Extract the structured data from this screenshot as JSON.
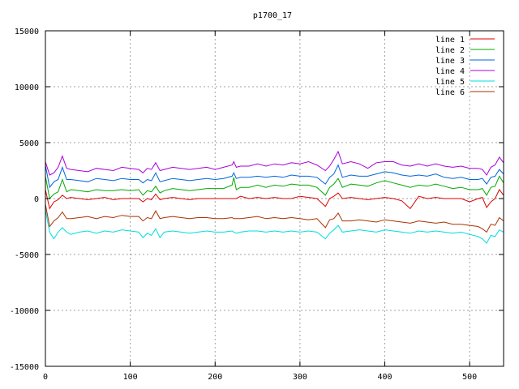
{
  "chart_data": {
    "type": "line",
    "title": "p1700_17",
    "xlabel": "",
    "ylabel": "",
    "xlim": [
      0,
      540
    ],
    "ylim": [
      -15000,
      15000
    ],
    "xticks": [
      "0",
      "100",
      "200",
      "300",
      "400",
      "500"
    ],
    "yticks": [
      "-15000",
      "-10000",
      "-5000",
      "0",
      "5000",
      "10000",
      "15000"
    ],
    "grid": true,
    "legend_position": "top-right",
    "x": [
      0,
      5,
      10,
      15,
      20,
      25,
      30,
      40,
      50,
      60,
      70,
      80,
      90,
      100,
      110,
      115,
      120,
      125,
      130,
      135,
      140,
      150,
      160,
      170,
      180,
      190,
      200,
      210,
      220,
      222,
      225,
      230,
      240,
      250,
      260,
      270,
      280,
      290,
      300,
      310,
      320,
      330,
      335,
      340,
      345,
      350,
      360,
      370,
      380,
      390,
      400,
      410,
      420,
      430,
      440,
      450,
      460,
      470,
      480,
      490,
      500,
      510,
      515,
      520,
      525,
      530,
      535,
      540
    ],
    "series": [
      {
        "name": "line 1",
        "color": "#dd0000",
        "values": [
          800,
          -900,
          -300,
          -100,
          300,
          0,
          100,
          0,
          -100,
          0,
          100,
          -100,
          0,
          0,
          0,
          -300,
          0,
          -100,
          400,
          -100,
          0,
          100,
          0,
          -100,
          0,
          0,
          0,
          0,
          0,
          0,
          0,
          200,
          0,
          100,
          0,
          100,
          0,
          0,
          200,
          100,
          0,
          -700,
          0,
          200,
          500,
          0,
          100,
          0,
          -100,
          0,
          100,
          0,
          -200,
          -900,
          200,
          0,
          100,
          0,
          0,
          0,
          -300,
          0,
          100,
          -800,
          -300,
          0,
          800,
          300
        ]
      },
      {
        "name": "line 2",
        "color": "#00aa00",
        "values": [
          2000,
          0,
          400,
          600,
          1700,
          600,
          800,
          700,
          600,
          800,
          700,
          700,
          800,
          700,
          800,
          300,
          700,
          600,
          1100,
          500,
          700,
          900,
          800,
          700,
          800,
          900,
          900,
          900,
          1200,
          1900,
          800,
          1000,
          1000,
          1200,
          1000,
          1200,
          1100,
          1300,
          1200,
          1200,
          1000,
          300,
          1000,
          1300,
          1800,
          1000,
          1300,
          1200,
          1100,
          1400,
          1600,
          1400,
          1200,
          1000,
          1200,
          1100,
          1300,
          1100,
          900,
          1000,
          800,
          800,
          900,
          300,
          1000,
          1100,
          2000,
          1400
        ]
      },
      {
        "name": "line 3",
        "color": "#0066dd",
        "values": [
          3000,
          1000,
          1500,
          1700,
          2800,
          1700,
          1700,
          1600,
          1500,
          1800,
          1700,
          1600,
          1800,
          1700,
          1700,
          1400,
          1700,
          1600,
          2300,
          1500,
          1600,
          1800,
          1700,
          1600,
          1700,
          1800,
          1700,
          1800,
          2000,
          2300,
          1800,
          1900,
          1900,
          2000,
          1900,
          2000,
          1900,
          2100,
          2000,
          2000,
          1900,
          1300,
          1900,
          2200,
          3000,
          1900,
          2100,
          2000,
          2000,
          2200,
          2400,
          2300,
          2100,
          2000,
          2100,
          2000,
          2200,
          1900,
          1800,
          1900,
          1700,
          1700,
          1800,
          1300,
          1900,
          2000,
          2600,
          2200
        ]
      },
      {
        "name": "line 4",
        "color": "#aa00dd",
        "values": [
          3300,
          2100,
          2300,
          2800,
          3800,
          2700,
          2600,
          2500,
          2400,
          2700,
          2600,
          2500,
          2800,
          2700,
          2600,
          2300,
          2700,
          2600,
          3200,
          2500,
          2600,
          2800,
          2700,
          2600,
          2700,
          2800,
          2600,
          2800,
          3000,
          3300,
          2800,
          2900,
          2900,
          3100,
          2900,
          3100,
          3000,
          3200,
          3100,
          3300,
          3000,
          2500,
          2900,
          3500,
          4200,
          3100,
          3300,
          3100,
          2700,
          3200,
          3300,
          3300,
          3000,
          2900,
          3100,
          2900,
          3100,
          2900,
          2800,
          2900,
          2700,
          2700,
          2600,
          2100,
          2800,
          3000,
          3700,
          3200
        ]
      },
      {
        "name": "line 5",
        "color": "#00dddd",
        "values": [
          -1000,
          -3000,
          -3600,
          -3000,
          -2600,
          -3000,
          -3200,
          -3000,
          -2900,
          -3100,
          -2900,
          -3000,
          -2800,
          -2900,
          -3000,
          -3500,
          -3100,
          -3300,
          -2700,
          -3500,
          -3000,
          -2900,
          -3000,
          -3100,
          -3000,
          -2900,
          -3000,
          -3000,
          -2900,
          -3000,
          -3100,
          -3000,
          -2900,
          -2900,
          -3000,
          -2900,
          -3000,
          -2900,
          -3000,
          -2900,
          -3000,
          -3600,
          -3100,
          -2800,
          -2400,
          -3000,
          -2900,
          -2800,
          -2900,
          -3000,
          -2800,
          -2900,
          -3000,
          -3100,
          -2900,
          -3000,
          -2900,
          -3000,
          -3100,
          -3000,
          -3200,
          -3400,
          -3600,
          -4000,
          -3300,
          -3400,
          -2800,
          -3000
        ]
      },
      {
        "name": "line 6",
        "color": "#aa3300",
        "values": [
          -500,
          -2500,
          -2000,
          -1700,
          -1200,
          -1800,
          -1800,
          -1700,
          -1600,
          -1800,
          -1600,
          -1700,
          -1500,
          -1600,
          -1600,
          -2000,
          -1700,
          -1800,
          -1100,
          -1800,
          -1700,
          -1600,
          -1700,
          -1800,
          -1700,
          -1700,
          -1800,
          -1800,
          -1700,
          -1800,
          -1800,
          -1800,
          -1700,
          -1600,
          -1800,
          -1700,
          -1800,
          -1700,
          -1800,
          -1900,
          -1800,
          -2600,
          -1900,
          -1800,
          -1300,
          -2000,
          -2000,
          -1900,
          -2000,
          -2100,
          -1900,
          -2000,
          -2100,
          -2200,
          -2000,
          -2100,
          -2200,
          -2100,
          -2300,
          -2300,
          -2400,
          -2500,
          -2700,
          -3000,
          -2300,
          -2400,
          -1700,
          -2000
        ]
      }
    ]
  }
}
